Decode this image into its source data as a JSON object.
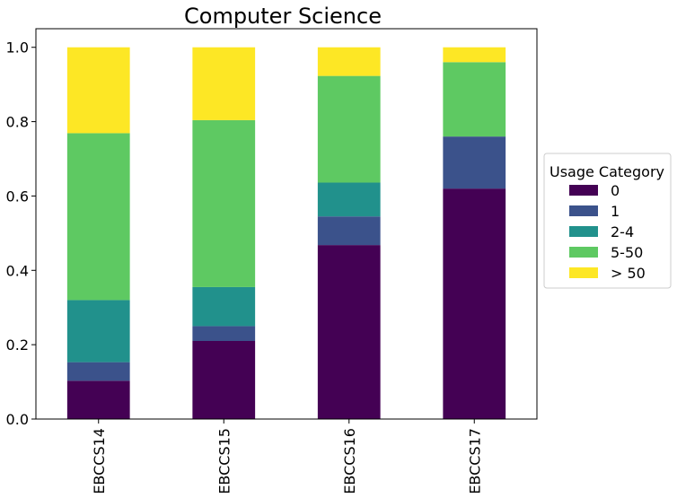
{
  "chart_data": {
    "type": "bar",
    "stacked": true,
    "title": "Computer Science",
    "xlabel": "",
    "ylabel": "",
    "categories": [
      "EBCCS14",
      "EBCCS15",
      "EBCCS16",
      "EBCCS17"
    ],
    "ylim": [
      0,
      1.05
    ],
    "yticks": [
      "0.0",
      "0.2",
      "0.4",
      "0.6",
      "0.8",
      "1.0"
    ],
    "grid": false,
    "legend": {
      "title": "Usage Category",
      "placement": "right"
    },
    "series": [
      {
        "name": "0",
        "color": "#440154",
        "values": [
          0.103,
          0.21,
          0.468,
          0.62
        ]
      },
      {
        "name": "1",
        "color": "#3b528b",
        "values": [
          0.05,
          0.04,
          0.077,
          0.14
        ]
      },
      {
        "name": "2-4",
        "color": "#21918c",
        "values": [
          0.167,
          0.105,
          0.091,
          0.0
        ]
      },
      {
        "name": "5-50",
        "color": "#5ec962",
        "values": [
          0.449,
          0.449,
          0.287,
          0.2
        ]
      },
      {
        "name": "> 50",
        "color": "#fde725",
        "values": [
          0.231,
          0.196,
          0.077,
          0.04
        ]
      }
    ]
  }
}
